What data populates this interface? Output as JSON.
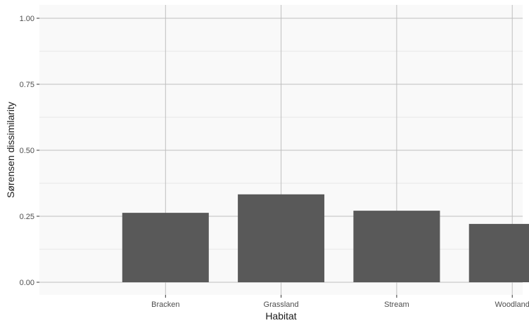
{
  "chart_data": {
    "type": "bar",
    "categories": [
      "Bracken",
      "Grassland",
      "Stream",
      "Woodland"
    ],
    "values": [
      0.263,
      0.333,
      0.271,
      0.221
    ],
    "xlabel": "Habitat",
    "ylabel": "Sørensen dissimilarity",
    "ylim": [
      0,
      1
    ],
    "yticks": [
      0,
      0.25,
      0.5,
      0.75,
      1
    ],
    "ytick_labels": [
      "0.00",
      "0.25",
      "0.50",
      "0.75",
      "1.00"
    ],
    "grid": true,
    "legend": "none",
    "colors": {
      "bar": "#595959",
      "panel_background": "#f9f9f9",
      "grid_major": "#bebebe",
      "grid_minor": "#d6d6d6"
    }
  }
}
